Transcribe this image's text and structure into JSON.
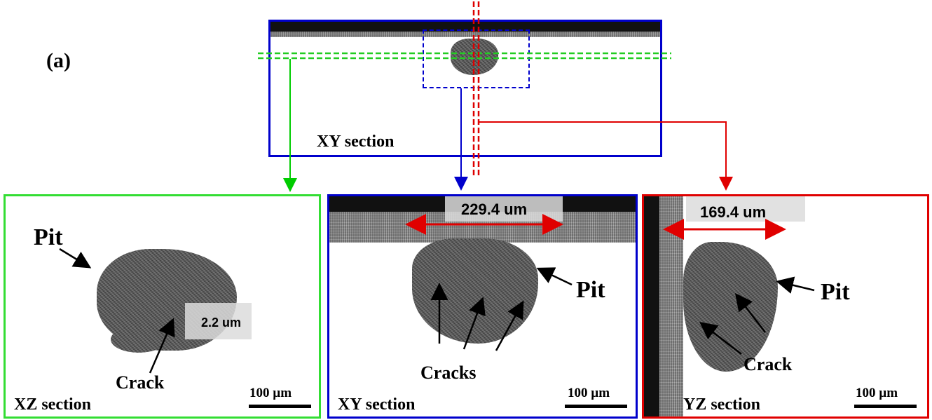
{
  "panel_label": "(a)",
  "overview": {
    "section_label": "XY section"
  },
  "panels": {
    "xz": {
      "section_label": "XZ section",
      "scale_text": "100 µm",
      "measure_text": "2.2 um",
      "annotations": [
        "Pit",
        "Crack"
      ]
    },
    "xy": {
      "section_label": "XY section",
      "scale_text": "100 µm",
      "measure_text": "229.4 um",
      "annotations": [
        "Pit",
        "Cracks"
      ]
    },
    "yz": {
      "section_label": "YZ section",
      "scale_text": "100 µm",
      "measure_text": "169.4 um",
      "annotations": [
        "Pit",
        "Crack"
      ]
    }
  },
  "colors": {
    "green": "#00cc00",
    "blue": "#0000cc",
    "red": "#e00000"
  }
}
